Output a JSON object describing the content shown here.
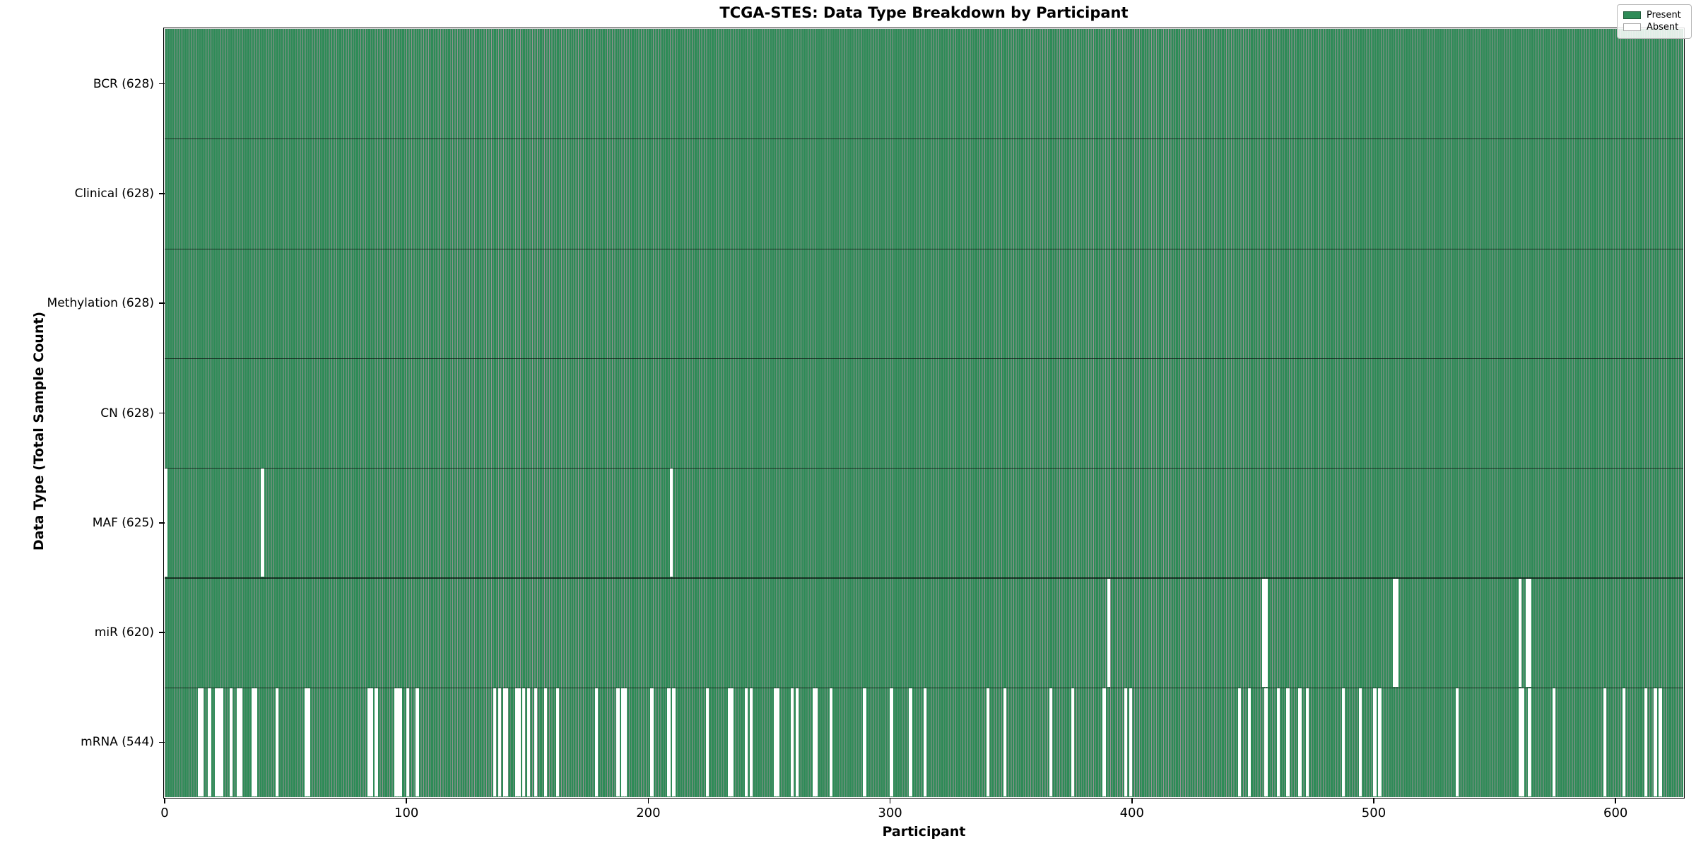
{
  "chart_data": {
    "type": "heatmap",
    "title": "TCGA-STES: Data Type Breakdown by Participant",
    "xlabel": "Participant",
    "ylabel": "Data Type (Total Sample Count)",
    "n_participants": 628,
    "x_ticks": [
      0,
      100,
      200,
      300,
      400,
      500,
      600
    ],
    "x_range": [
      0,
      628
    ],
    "grid": "row-separators-only",
    "legend_position": "upper right",
    "legend": [
      {
        "label": "Present",
        "color": "#2e8b57"
      },
      {
        "label": "Absent",
        "color": "#ffffff"
      }
    ],
    "present_color": "#2e8b57",
    "bar_edge_color": "rgba(0,0,0,0.42)",
    "absent_color": "#ffffff",
    "rows": [
      {
        "label": "BCR (628)",
        "name": "BCR",
        "total": 628,
        "absent": []
      },
      {
        "label": "Clinical (628)",
        "name": "Clinical",
        "total": 628,
        "absent": []
      },
      {
        "label": "Methylation (628)",
        "name": "Methylation",
        "total": 628,
        "absent": []
      },
      {
        "label": "CN (628)",
        "name": "CN",
        "total": 628,
        "absent": []
      },
      {
        "label": "MAF (625)",
        "name": "MAF",
        "total": 625,
        "absent": [
          0,
          40,
          209
        ]
      },
      {
        "label": "miR (620)",
        "name": "miR",
        "total": 620,
        "absent": [
          390,
          454,
          455,
          508,
          509,
          560,
          563,
          564
        ]
      },
      {
        "label": "mRNA (544)",
        "name": "mRNA",
        "total": 544,
        "absent": [
          14,
          15,
          18,
          21,
          22,
          23,
          27,
          30,
          31,
          36,
          37,
          46,
          58,
          59,
          84,
          85,
          87,
          95,
          96,
          97,
          100,
          104,
          136,
          138,
          140,
          141,
          145,
          146,
          148,
          150,
          153,
          157,
          162,
          178,
          187,
          189,
          190,
          201,
          208,
          210,
          224,
          233,
          234,
          240,
          242,
          252,
          253,
          259,
          261,
          268,
          269,
          275,
          289,
          300,
          308,
          314,
          340,
          347,
          366,
          375,
          388,
          397,
          399,
          444,
          448,
          455,
          460,
          464,
          469,
          472,
          487,
          494,
          500,
          502,
          534,
          560,
          561,
          564,
          574,
          595,
          603,
          612,
          616,
          618
        ]
      }
    ]
  }
}
